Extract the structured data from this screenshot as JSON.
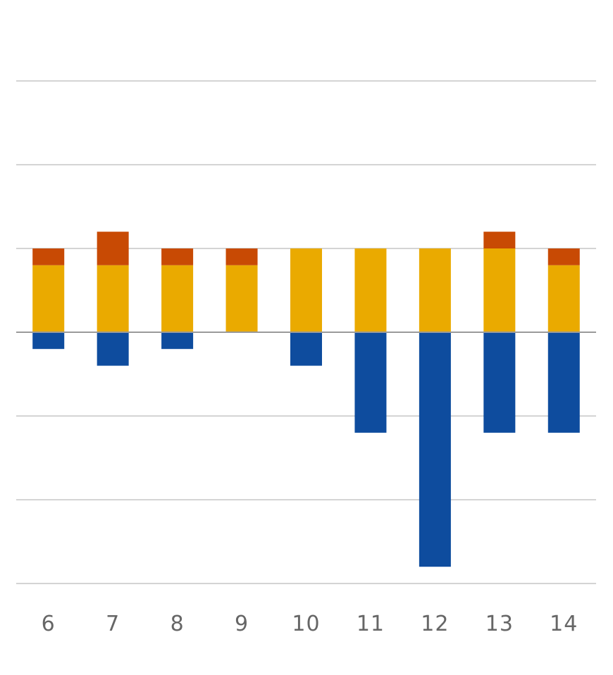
{
  "chart_data": {
    "type": "bar",
    "stacked": true,
    "title": "",
    "xlabel": "",
    "ylabel": "",
    "categories": [
      "6",
      "7",
      "8",
      "9",
      "10",
      "11",
      "12",
      "13",
      "14"
    ],
    "series": [
      {
        "values": [
          -1,
          -2,
          -1,
          0,
          -2,
          -6,
          -14,
          -6,
          -6
        ],
        "color": "#0E4C9E"
      },
      {
        "values": [
          4,
          4,
          4,
          4,
          5,
          5,
          5,
          5,
          4
        ],
        "color": "#EAAA00"
      },
      {
        "values": [
          1,
          2,
          1,
          1,
          0,
          0,
          0,
          1,
          1
        ],
        "color": "#C84A04"
      }
    ],
    "ylim": [
      -15,
      15
    ],
    "gridline_step": 5,
    "show_y_tick_labels": false,
    "grid": true,
    "colors": {
      "grid": "#D4D4D4",
      "zero_line": "#9A9A9A",
      "tick_text": "#666666"
    }
  }
}
